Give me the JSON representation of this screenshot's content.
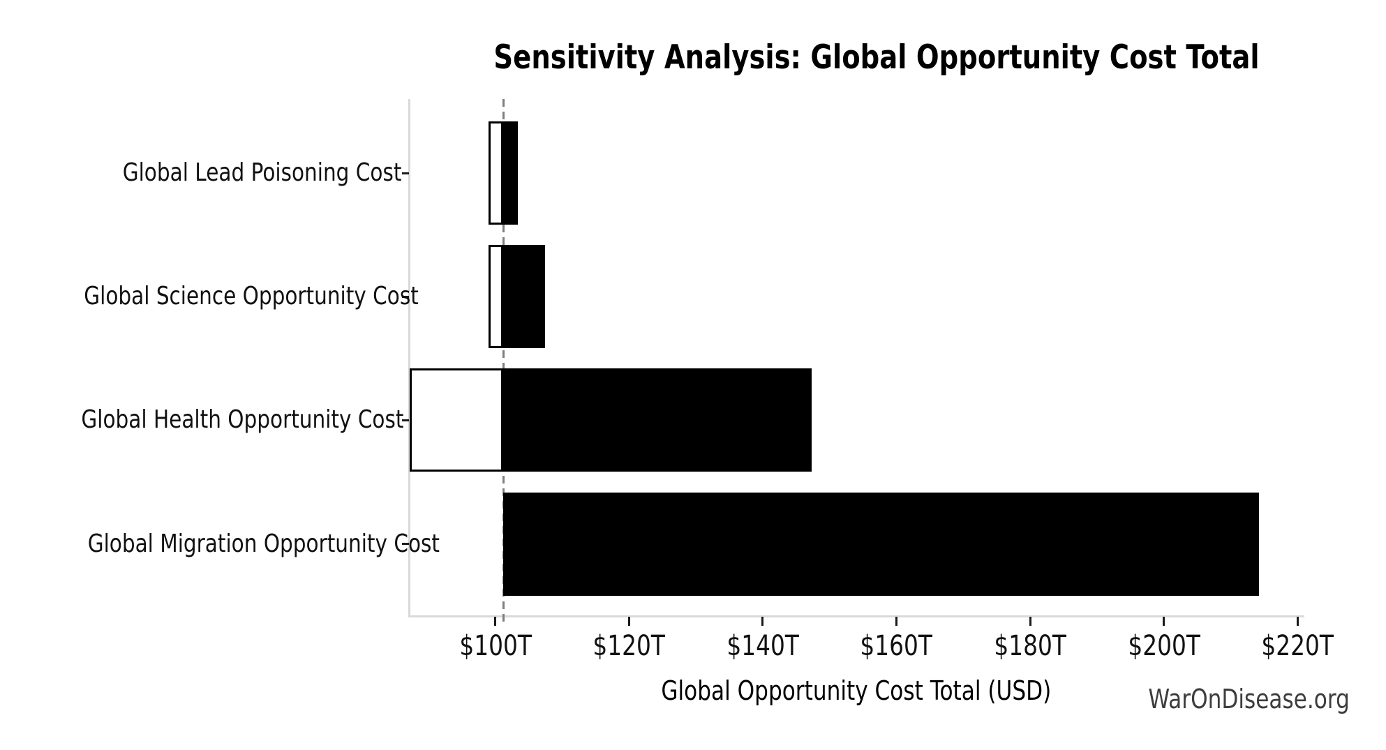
{
  "title": "Sensitivity Analysis: Global Opportunity Cost Total",
  "watermark": "WarOnDisease.org",
  "chart_data": {
    "type": "bar",
    "subtype": "tornado-sensitivity",
    "orientation": "horizontal",
    "title": "Sensitivity Analysis: Global Opportunity Cost Total",
    "xlabel": "Global Opportunity Cost Total (USD)",
    "ylabel": "",
    "unit": "trillion USD",
    "categories": [
      "Global Lead Poisoning Cost",
      "Global Science Opportunity Cost",
      "Global Health Opportunity Cost",
      "Global Migration Opportunity Cost"
    ],
    "baseline": 101.2,
    "series": [
      {
        "name": "low",
        "values": [
          99.0,
          99.0,
          87.2,
          101.2
        ]
      },
      {
        "name": "high",
        "values": [
          103.4,
          107.5,
          147.3,
          214.2
        ]
      }
    ],
    "x_ticks": [
      100,
      120,
      140,
      160,
      180,
      200,
      220
    ],
    "x_tick_labels": [
      "$100T",
      "$120T",
      "$140T",
      "$160T",
      "$180T",
      "$200T",
      "$220T"
    ],
    "xlim": [
      87.2,
      220.8
    ],
    "grid": false,
    "legend": "none",
    "baseline_marker": "vertical dashed line at baseline value"
  },
  "colors": {
    "bar_high_fill": "#000000",
    "bar_low_fill": "#ffffff",
    "bar_edge": "#000000",
    "baseline_line": "#7f7f7f",
    "spine": "#d9d9d9",
    "tick_mark": "#1a1a1a",
    "text": "#111111",
    "watermark_text": "#3d3d3d"
  }
}
